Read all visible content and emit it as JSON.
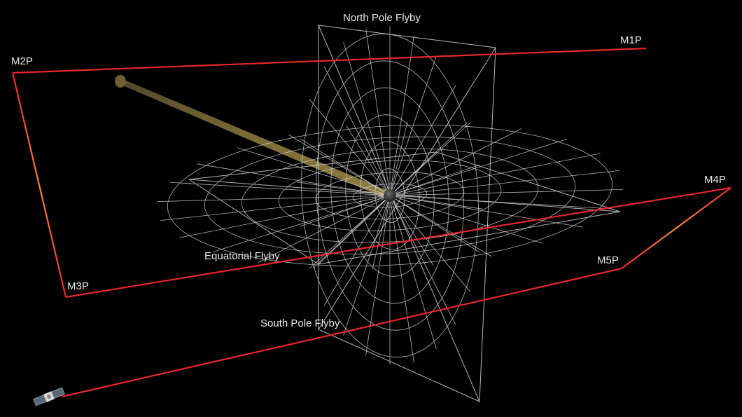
{
  "labels": {
    "north_pole_flyby": "North Pole Flyby",
    "equatorial_flyby": "Equatorial Flyby",
    "south_pole_flyby": "South Pole Flyby",
    "m1p": "M1P",
    "m2p": "M2P",
    "m3p": "M3P",
    "m4p": "M4P",
    "m5p": "M5P"
  },
  "colors": {
    "background": "#000000",
    "trajectory": "#e8262b",
    "trajectory_turn": "#f08a3a",
    "grid": "#d8d8d8",
    "sun_ray": "#8a7a3c",
    "asteroid": "#3a3a3a"
  },
  "icons": {
    "asteroid": "asteroid-body-icon",
    "spacecraft": "spacecraft-icon",
    "sun_ray": "sunlight-beam-icon"
  }
}
